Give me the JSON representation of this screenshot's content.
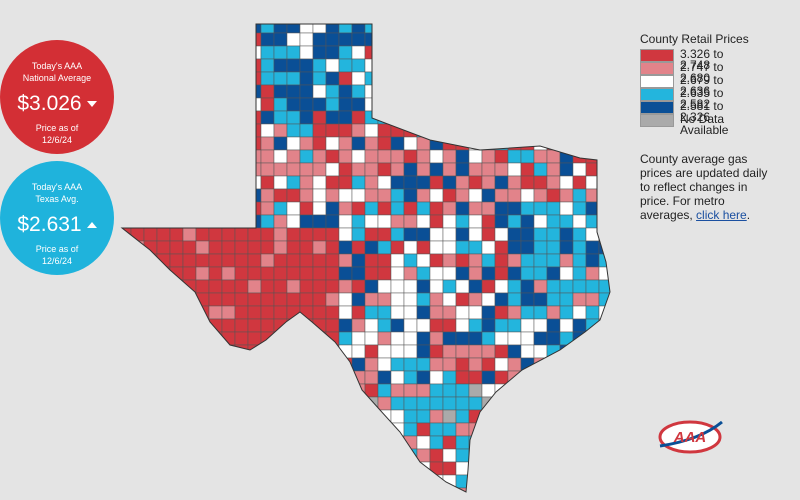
{
  "national": {
    "line1": "Today's AAA",
    "line2": "National Average",
    "price": "$3.026",
    "asof": "Price as of",
    "date": "12/6/24"
  },
  "texas": {
    "line1": "Today's AAA",
    "line2": "Texas Avg.",
    "price": "$2.631",
    "asof": "Price as of",
    "date": "12/6/24"
  },
  "legend": {
    "title": "County Retail Prices",
    "items": [
      {
        "label": "3.326 to 2.748",
        "color": "#d0373f"
      },
      {
        "label": "2.747 to 2.680",
        "color": "#e2838a"
      },
      {
        "label": "2.679 to 2.636",
        "color": "#ffffff"
      },
      {
        "label": "2.635 to 2.582",
        "color": "#23b5dd"
      },
      {
        "label": "2.581 to 2.326",
        "color": "#0a4f96"
      },
      {
        "label": "No Data Available",
        "color": "#aaaaaa"
      }
    ]
  },
  "note": {
    "text": "County average gas prices are updated daily to reflect changes in price. For metro averages,",
    "link": "click here",
    "end": "."
  },
  "logo": "AAA"
}
